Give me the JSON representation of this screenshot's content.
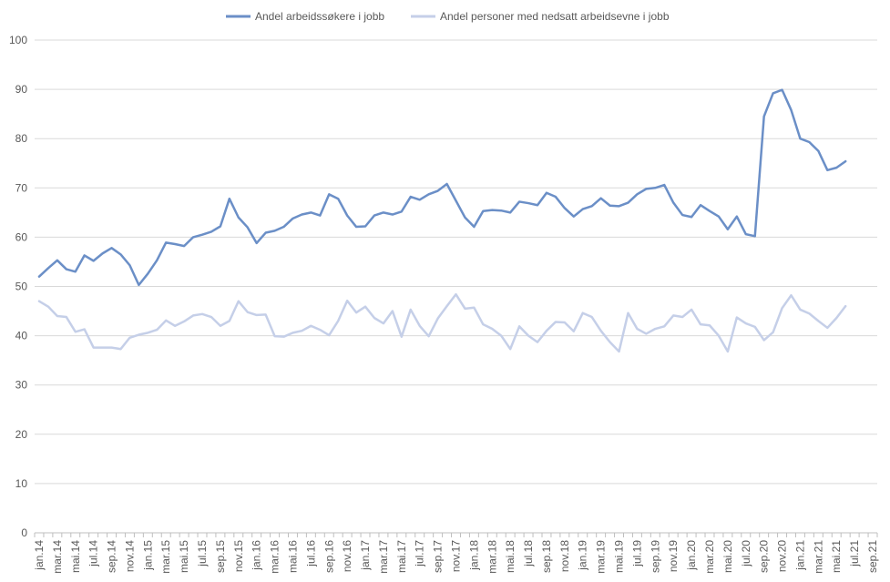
{
  "chart_data": {
    "type": "line",
    "title": "",
    "xlabel": "",
    "ylabel": "",
    "ylim": [
      0,
      100
    ],
    "yticks": [
      0,
      10,
      20,
      30,
      40,
      50,
      60,
      70,
      80,
      90,
      100
    ],
    "grid": true,
    "legend_position": "top",
    "x_tick_labels": [
      "jan.14",
      "mar.14",
      "mai.14",
      "jul.14",
      "sep.14",
      "nov.14",
      "jan.15",
      "mar.15",
      "mai.15",
      "jul.15",
      "sep.15",
      "nov.15",
      "jan.16",
      "mar.16",
      "mai.16",
      "jul.16",
      "sep.16",
      "nov.16",
      "jan.17",
      "mar.17",
      "mai.17",
      "jul.17",
      "sep.17",
      "nov.17",
      "jan.18",
      "mar.18",
      "mai.18",
      "jul.18",
      "sep.18",
      "nov.18",
      "jan.19",
      "mar.19",
      "mai.19",
      "jul.19",
      "sep.19",
      "nov.19",
      "jan.20",
      "mar.20",
      "mai.20",
      "jul.20",
      "sep.20",
      "nov.20",
      "jan.21",
      "mar.21",
      "mai.21",
      "jul.21",
      "sep.21"
    ],
    "series": [
      {
        "name": "Andel arbeidssøkere i jobb",
        "color": "#6b8fc7",
        "values": [
          52.0,
          53.7,
          55.3,
          53.5,
          53.0,
          56.3,
          55.2,
          56.7,
          57.8,
          56.5,
          54.3,
          50.3,
          52.6,
          55.3,
          58.9,
          58.6,
          58.2,
          60.0,
          60.5,
          61.1,
          62.2,
          67.8,
          64.0,
          62.0,
          58.8,
          60.9,
          61.3,
          62.1,
          63.8,
          64.6,
          65.0,
          64.4,
          68.7,
          67.8,
          64.4,
          62.1,
          62.2,
          64.4,
          65.0,
          64.6,
          65.2,
          68.2,
          67.6,
          68.7,
          69.4,
          70.8,
          67.4,
          64.0,
          62.1,
          65.3,
          65.5,
          65.4,
          65.0,
          67.2,
          66.9,
          66.5,
          69.0,
          68.2,
          65.9,
          64.2,
          65.7,
          66.3,
          67.9,
          66.4,
          66.3,
          67.0,
          68.7,
          69.8,
          70.0,
          70.6,
          67.0,
          64.5,
          64.1,
          66.5,
          65.3,
          64.2,
          61.6,
          64.2,
          60.6,
          60.2,
          84.5,
          89.2,
          89.9,
          85.8,
          80.0,
          79.3,
          77.5,
          73.6,
          74.1,
          75.4
        ]
      },
      {
        "name": "Andel personer med nedsatt arbeidsevne i jobb",
        "color": "#c5cfe8",
        "values": [
          47.0,
          45.9,
          44.0,
          43.8,
          40.8,
          41.3,
          37.6,
          37.6,
          37.6,
          37.3,
          39.6,
          40.2,
          40.6,
          41.2,
          43.1,
          42.0,
          42.9,
          44.1,
          44.4,
          43.8,
          42.0,
          43.0,
          47.0,
          44.8,
          44.2,
          44.3,
          39.9,
          39.8,
          40.6,
          41.0,
          42.0,
          41.2,
          40.1,
          43.0,
          47.1,
          44.7,
          45.9,
          43.6,
          42.5,
          45.0,
          39.8,
          45.3,
          42.0,
          39.9,
          43.5,
          46.0,
          48.4,
          45.5,
          45.7,
          42.3,
          41.4,
          40.0,
          37.3,
          41.9,
          40.0,
          38.7,
          41.0,
          42.8,
          42.7,
          40.9,
          44.6,
          43.8,
          41.0,
          38.7,
          36.8,
          44.6,
          41.4,
          40.4,
          41.4,
          41.9,
          44.1,
          43.8,
          45.3,
          42.3,
          42.1,
          40.0,
          36.8,
          43.7,
          42.5,
          41.8,
          39.1,
          40.7,
          45.6,
          48.2,
          45.3,
          44.5,
          43.0,
          41.6,
          43.6,
          46.0
        ]
      }
    ]
  }
}
